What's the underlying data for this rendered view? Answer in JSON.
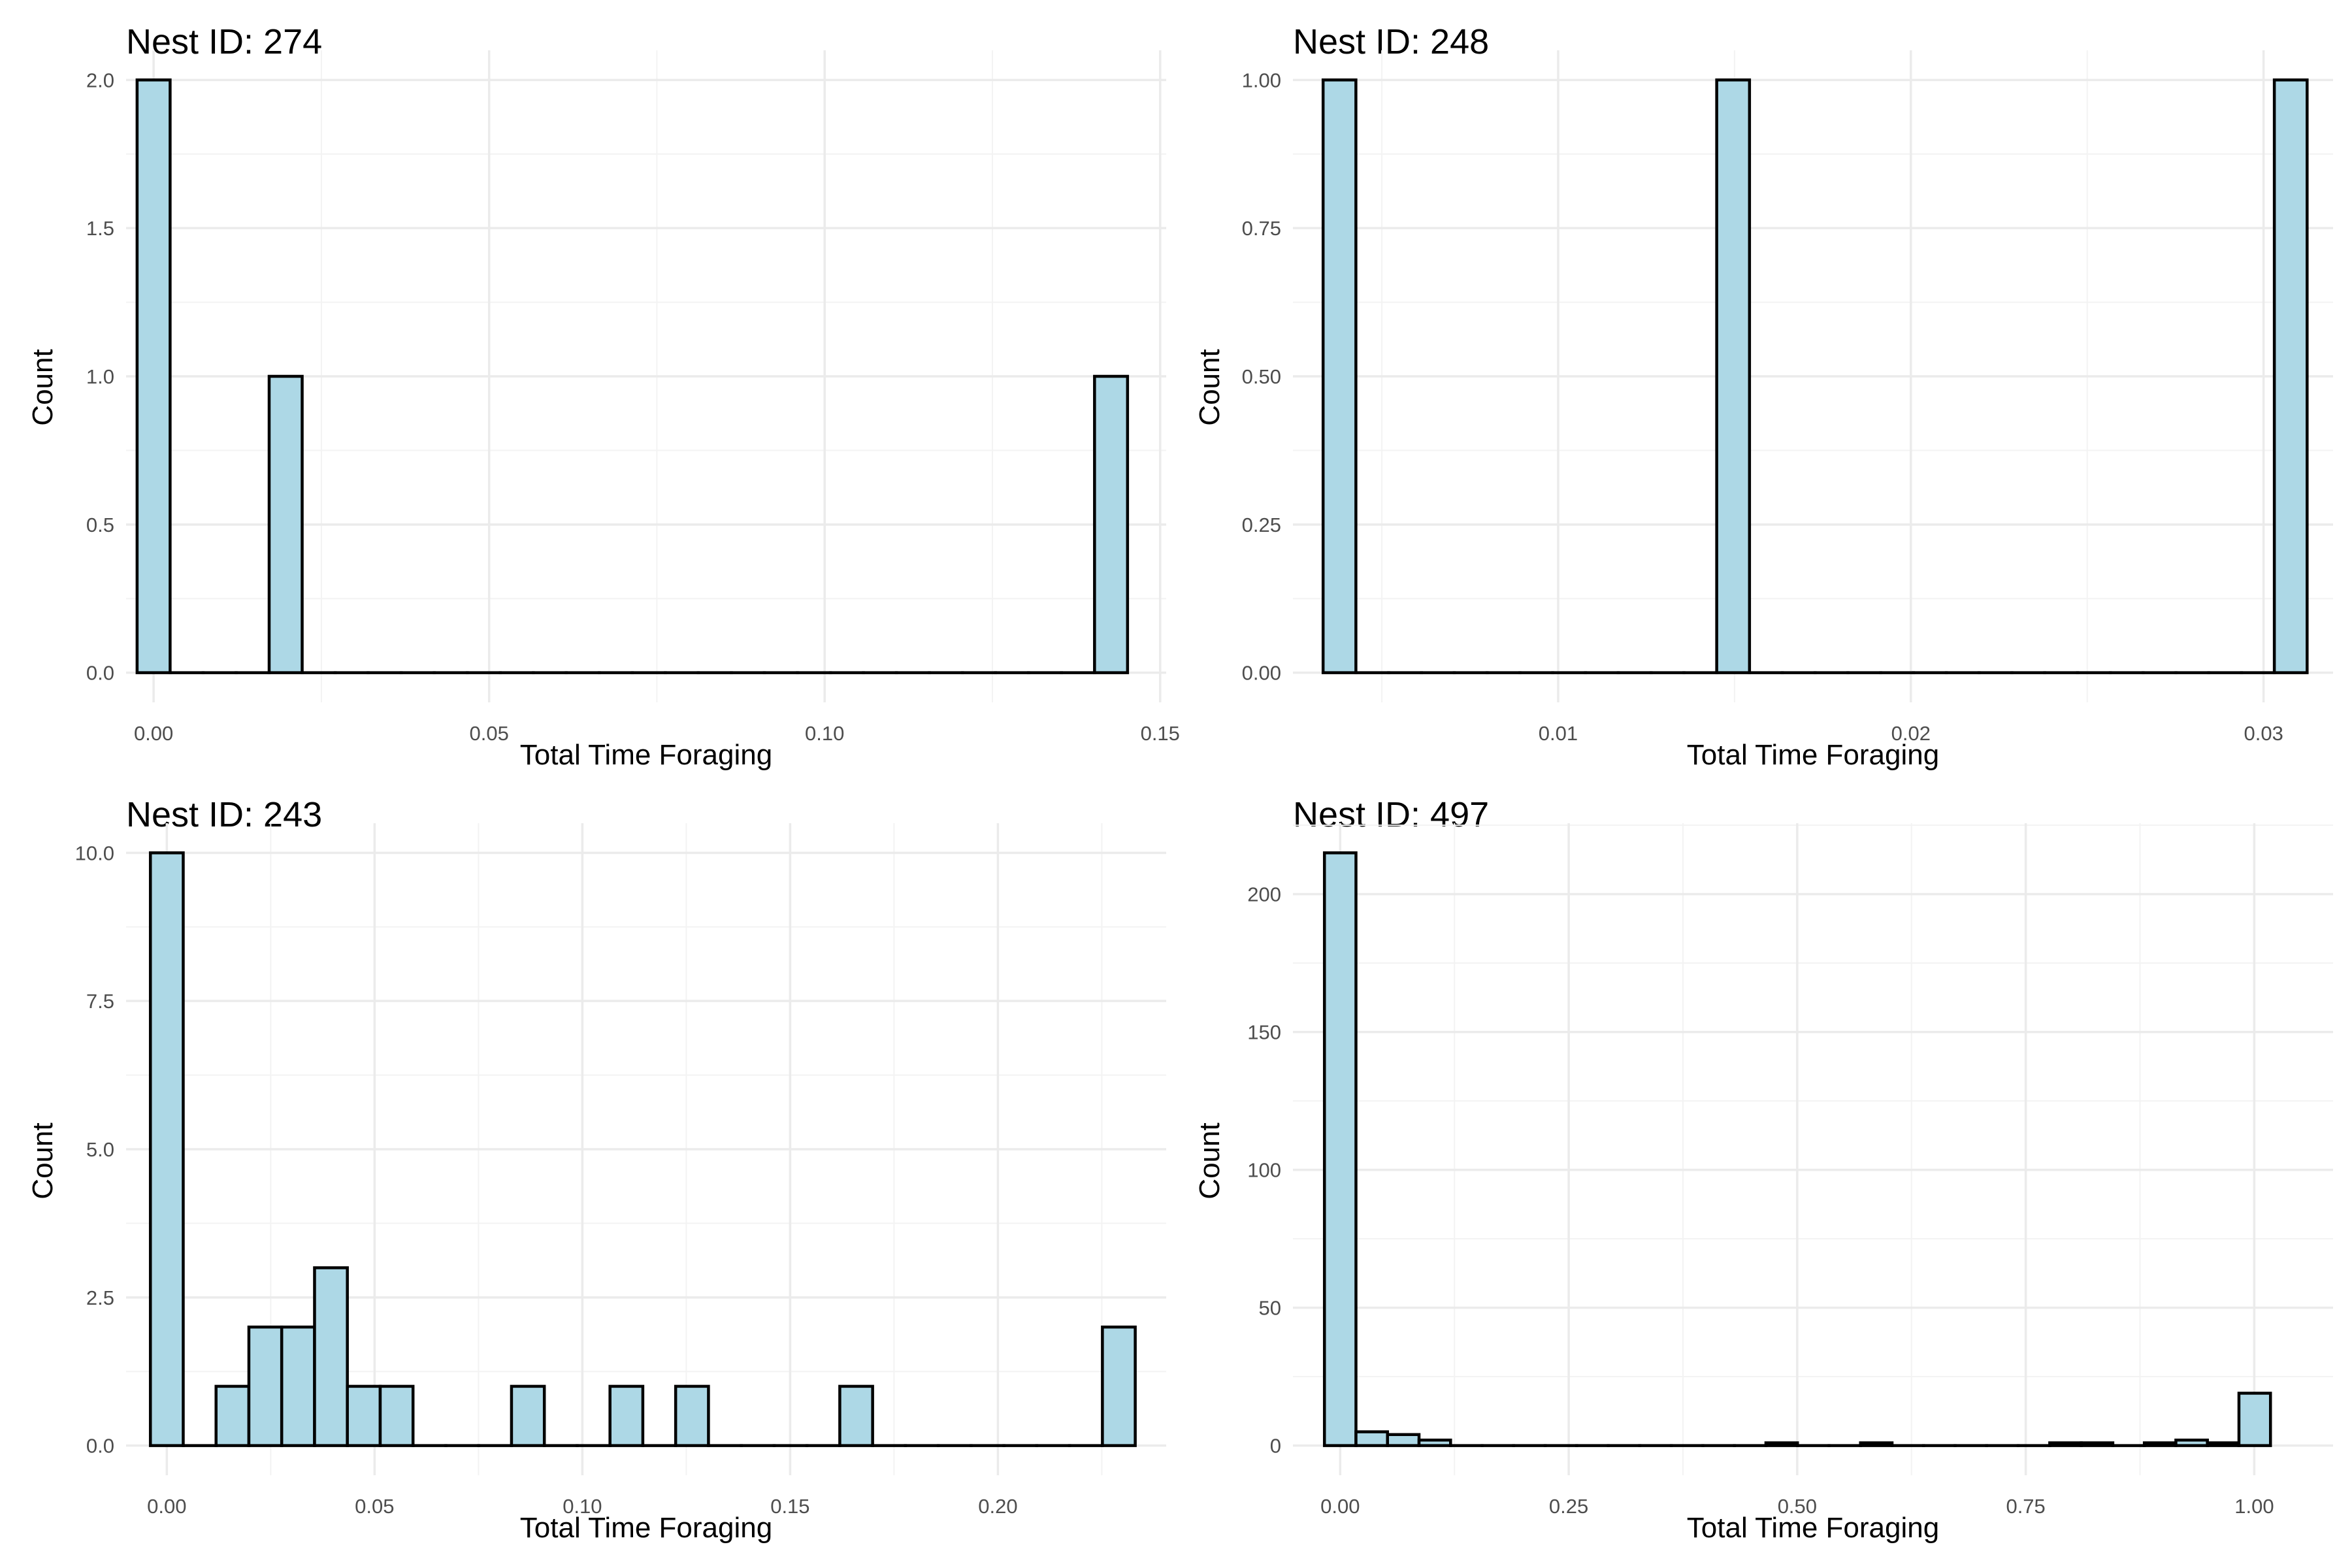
{
  "style": {
    "bar_fill": "#add8e6",
    "bar_outline": "#000000",
    "grid_color": "#ebebeb",
    "background": "#ffffff"
  },
  "chart_data": [
    {
      "type": "bar",
      "title": "Nest ID: 274",
      "xlabel": "Total Time Foraging",
      "ylabel": "Count",
      "grid": true,
      "xlim": [
        -0.0041,
        0.1509
      ],
      "ylim": [
        -0.1,
        2.1
      ],
      "x_breaks": [
        0.0,
        0.05,
        0.1,
        0.15
      ],
      "x_tick_labels": [
        "0.00",
        "0.05",
        "0.10",
        "0.15"
      ],
      "y_breaks": [
        0.0,
        0.5,
        1.0,
        1.5,
        2.0
      ],
      "y_tick_labels": [
        "0.0",
        "0.5",
        "1.0",
        "1.5",
        "2.0"
      ],
      "bins": {
        "first_center": 0.0,
        "width": 0.00492,
        "count": 30
      },
      "bars": [
        {
          "x": 0.0,
          "count": 2
        },
        {
          "x": 0.0197,
          "count": 1
        },
        {
          "x": 0.1427,
          "count": 1
        }
      ]
    },
    {
      "type": "bar",
      "title": "Nest ID: 248",
      "xlabel": "Total Time Foraging",
      "ylabel": "Count",
      "grid": true,
      "xlim": [
        0.00248,
        0.03197
      ],
      "ylim": [
        -0.05,
        1.05
      ],
      "x_breaks": [
        0.01,
        0.02,
        0.03
      ],
      "x_tick_labels": [
        "0.01",
        "0.02",
        "0.03"
      ],
      "y_breaks": [
        0.0,
        0.25,
        0.5,
        0.75,
        1.0
      ],
      "y_tick_labels": [
        "0.00",
        "0.25",
        "0.50",
        "0.75",
        "1.00"
      ],
      "bins": {
        "first_center": 0.0038,
        "width": 0.00093,
        "count": 30
      },
      "bars": [
        {
          "x": 0.0038,
          "count": 1
        },
        {
          "x": 0.0148,
          "count": 1
        },
        {
          "x": 0.0307,
          "count": 1
        }
      ]
    },
    {
      "type": "bar",
      "title": "Nest ID: 243",
      "xlabel": "Total Time Foraging",
      "ylabel": "Count",
      "grid": true,
      "xlim": [
        -0.0098,
        0.2405
      ],
      "ylim": [
        -0.5,
        10.5
      ],
      "x_breaks": [
        0.0,
        0.05,
        0.1,
        0.15,
        0.2
      ],
      "x_tick_labels": [
        "0.00",
        "0.05",
        "0.10",
        "0.15",
        "0.20"
      ],
      "y_breaks": [
        0.0,
        2.5,
        5.0,
        7.5,
        10.0
      ],
      "y_tick_labels": [
        "0.0",
        "2.5",
        "5.0",
        "7.5",
        "10.0"
      ],
      "bins": {
        "first_center": 0.0,
        "width": 0.0079,
        "count": 30
      },
      "bars": [
        {
          "x": 0.0,
          "count": 10
        },
        {
          "x": 0.0158,
          "count": 1
        },
        {
          "x": 0.0237,
          "count": 2
        },
        {
          "x": 0.0316,
          "count": 2
        },
        {
          "x": 0.0395,
          "count": 3
        },
        {
          "x": 0.0474,
          "count": 1
        },
        {
          "x": 0.0553,
          "count": 1
        },
        {
          "x": 0.0869,
          "count": 1
        },
        {
          "x": 0.1106,
          "count": 1
        },
        {
          "x": 0.1264,
          "count": 1
        },
        {
          "x": 0.1659,
          "count": 1
        },
        {
          "x": 0.2291,
          "count": 2
        }
      ]
    },
    {
      "type": "bar",
      "title": "Nest ID: 497",
      "xlabel": "Total Time Foraging",
      "ylabel": "Count",
      "grid": true,
      "xlim": [
        -0.0517,
        1.0862
      ],
      "ylim": [
        -10.75,
        225.75
      ],
      "x_breaks": [
        0.0,
        0.25,
        0.5,
        0.75,
        1.0
      ],
      "x_tick_labels": [
        "0.00",
        "0.25",
        "0.50",
        "0.75",
        "1.00"
      ],
      "y_breaks": [
        0,
        50,
        100,
        150,
        200
      ],
      "y_tick_labels": [
        "0",
        "50",
        "100",
        "150",
        "200"
      ],
      "bins": {
        "first_center": 0.0,
        "width": 0.0345,
        "count": 30
      },
      "bars": [
        {
          "x": 0.0,
          "count": 215
        },
        {
          "x": 0.0345,
          "count": 5
        },
        {
          "x": 0.069,
          "count": 4
        },
        {
          "x": 0.1034,
          "count": 2
        },
        {
          "x": 0.4828,
          "count": 1
        },
        {
          "x": 0.5862,
          "count": 1
        },
        {
          "x": 0.7931,
          "count": 1
        },
        {
          "x": 0.8276,
          "count": 1
        },
        {
          "x": 0.8966,
          "count": 1
        },
        {
          "x": 0.931,
          "count": 2
        },
        {
          "x": 0.9655,
          "count": 1
        },
        {
          "x": 1.0,
          "count": 19
        }
      ]
    }
  ]
}
